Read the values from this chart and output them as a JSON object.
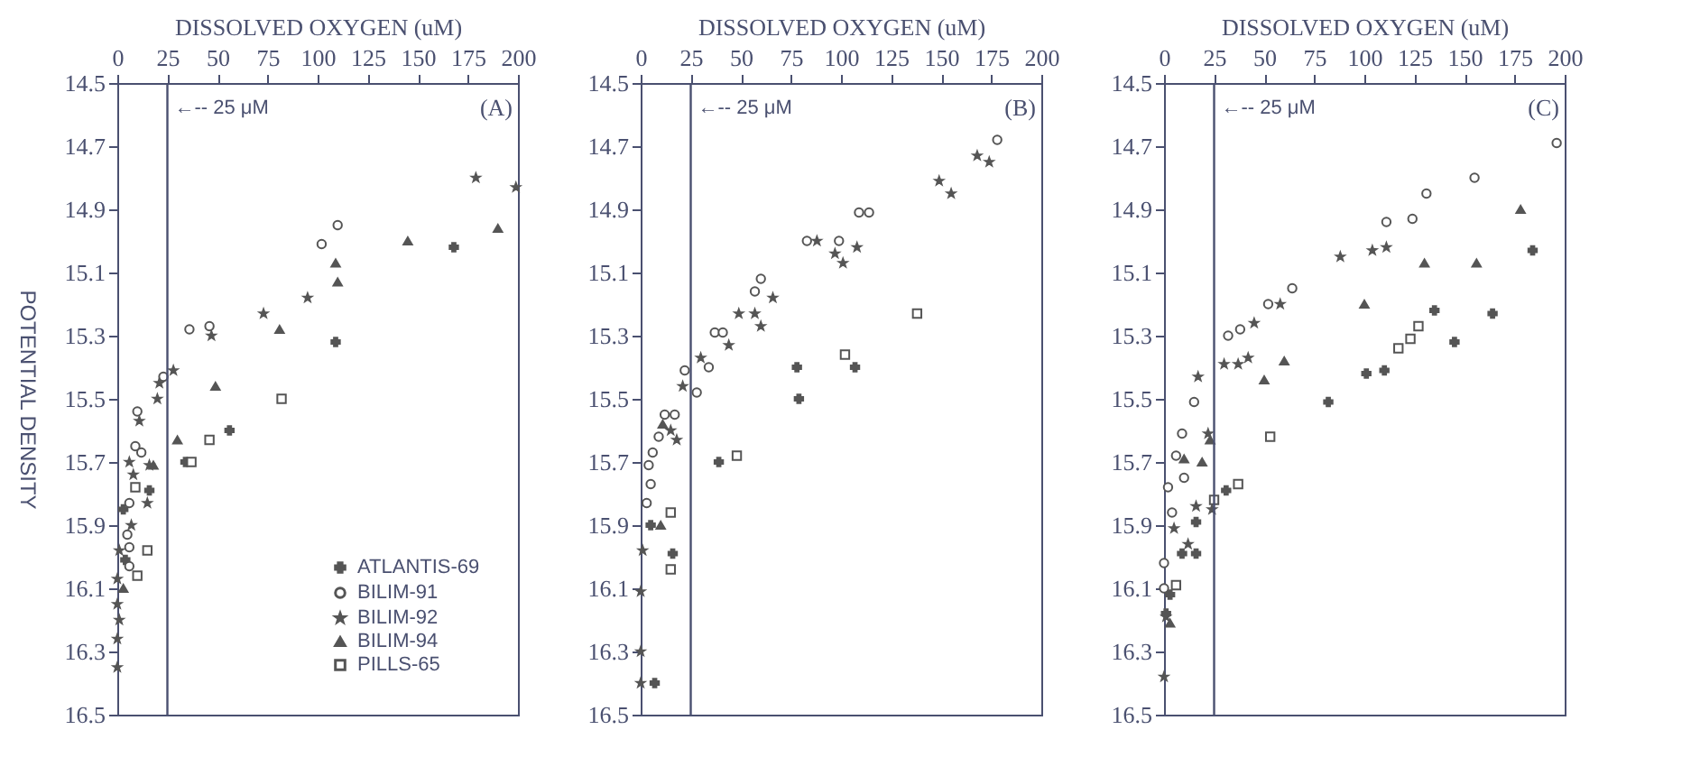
{
  "chart_data": [
    {
      "type": "scatter",
      "xlabel": "DISSOLVED OXYGEN (uM)",
      "ylabel": "POTENTIAL DENSITY",
      "xlim": [
        0,
        200
      ],
      "xticks": [
        0,
        25,
        50,
        75,
        100,
        125,
        150,
        175,
        200
      ],
      "ylim": [
        16.5,
        14.5
      ],
      "yticks": [
        14.5,
        14.7,
        14.9,
        15.1,
        15.3,
        15.5,
        15.7,
        15.9,
        16.1,
        16.3,
        16.5
      ],
      "legend": "bottom right",
      "annotations": [
        {
          "text": "(A)"
        }
      ],
      "ref_lines": [
        {
          "axis": "x",
          "value": 25,
          "label": "←-- 25 μM"
        }
      ],
      "series": [
        {
          "name": "ATLANTIS-69",
          "color": "#555555",
          "marker": "cross",
          "x": [
            168,
            109,
            56,
            34,
            16,
            3,
            4
          ],
          "values": [
            15.02,
            15.32,
            15.6,
            15.7,
            15.79,
            15.85,
            16.01
          ]
        },
        {
          "name": "BILIM-91",
          "color": "#555555",
          "marker": "circle",
          "x": [
            110,
            102,
            36,
            46,
            23,
            10,
            9,
            12,
            6,
            5,
            6,
            6
          ],
          "values": [
            14.95,
            15.01,
            15.28,
            15.27,
            15.43,
            15.54,
            15.65,
            15.67,
            15.83,
            15.93,
            15.97,
            16.03
          ]
        },
        {
          "name": "BILIM-92",
          "color": "#555555",
          "marker": "star",
          "x": [
            179,
            199,
            95,
            73,
            47,
            28,
            21,
            20,
            11,
            16,
            6,
            8,
            15,
            7,
            1,
            0,
            0,
            1,
            0,
            0
          ],
          "values": [
            14.8,
            14.83,
            15.18,
            15.23,
            15.3,
            15.41,
            15.45,
            15.5,
            15.57,
            15.71,
            15.7,
            15.74,
            15.83,
            15.9,
            15.98,
            16.07,
            16.15,
            16.2,
            16.26,
            16.35
          ]
        },
        {
          "name": "BILIM-94",
          "color": "#555555",
          "marker": "triangle",
          "x": [
            190,
            145,
            109,
            110,
            81,
            49,
            30,
            18,
            3
          ],
          "values": [
            14.96,
            15.0,
            15.07,
            15.13,
            15.28,
            15.46,
            15.63,
            15.71,
            16.1
          ]
        },
        {
          "name": "PILLS-65",
          "color": "#555555",
          "marker": "square",
          "x": [
            82,
            46,
            37,
            9,
            15,
            10
          ],
          "values": [
            15.5,
            15.63,
            15.7,
            15.78,
            15.98,
            16.06
          ]
        }
      ]
    },
    {
      "type": "scatter",
      "xlabel": "DISSOLVED OXYGEN (uM)",
      "xlim": [
        0,
        200
      ],
      "xticks": [
        0,
        25,
        50,
        75,
        100,
        125,
        150,
        175,
        200
      ],
      "ylim": [
        16.5,
        14.5
      ],
      "yticks": [
        14.5,
        14.7,
        14.9,
        15.1,
        15.3,
        15.5,
        15.7,
        15.9,
        16.1,
        16.3,
        16.5
      ],
      "annotations": [
        {
          "text": "(B)"
        }
      ],
      "ref_lines": [
        {
          "axis": "x",
          "value": 25,
          "label": "←-- 25 μM"
        }
      ],
      "series": [
        {
          "color": "#555555",
          "marker": "cross",
          "x": [
            78,
            107,
            79,
            39,
            5,
            16,
            7
          ],
          "values": [
            15.4,
            15.4,
            15.5,
            15.7,
            15.9,
            15.99,
            16.4
          ]
        },
        {
          "color": "#555555",
          "marker": "circle",
          "x": [
            178,
            109,
            114,
            83,
            99,
            60,
            57,
            37,
            41,
            34,
            22,
            28,
            12,
            17,
            9,
            6,
            4,
            5,
            3
          ],
          "values": [
            14.68,
            14.91,
            14.91,
            15.0,
            15.0,
            15.12,
            15.16,
            15.29,
            15.29,
            15.4,
            15.41,
            15.48,
            15.55,
            15.55,
            15.62,
            15.67,
            15.71,
            15.77,
            15.83
          ]
        },
        {
          "color": "#555555",
          "marker": "star",
          "x": [
            168,
            174,
            149,
            155,
            88,
            97,
            101,
            108,
            66,
            49,
            57,
            60,
            44,
            30,
            21,
            15,
            18,
            1,
            0,
            0,
            0
          ],
          "values": [
            14.73,
            14.75,
            14.81,
            14.85,
            15.0,
            15.04,
            15.07,
            15.02,
            15.18,
            15.23,
            15.23,
            15.27,
            15.33,
            15.37,
            15.46,
            15.6,
            15.63,
            15.98,
            16.11,
            16.3,
            16.4
          ]
        },
        {
          "color": "#555555",
          "marker": "triangle",
          "x": [
            11,
            10
          ],
          "values": [
            15.58,
            15.9
          ]
        },
        {
          "color": "#555555",
          "marker": "square",
          "x": [
            138,
            102,
            48,
            15,
            15
          ],
          "values": [
            15.23,
            15.36,
            15.68,
            15.86,
            16.04
          ]
        }
      ]
    },
    {
      "type": "scatter",
      "xlabel": "DISSOLVED OXYGEN (uM)",
      "xlim": [
        0,
        200
      ],
      "xticks": [
        0,
        25,
        50,
        75,
        100,
        125,
        150,
        175,
        200
      ],
      "ylim": [
        16.5,
        14.5
      ],
      "yticks": [
        14.5,
        14.7,
        14.9,
        15.1,
        15.3,
        15.5,
        15.7,
        15.9,
        16.1,
        16.3,
        16.5
      ],
      "annotations": [
        {
          "text": "(C)"
        }
      ],
      "ref_lines": [
        {
          "axis": "x",
          "value": 25,
          "label": "←-- 25 μM"
        }
      ],
      "series": [
        {
          "color": "#555555",
          "marker": "cross",
          "x": [
            184,
            164,
            135,
            145,
            110,
            101,
            82,
            31,
            16,
            9,
            16,
            3,
            1
          ],
          "values": [
            15.03,
            15.23,
            15.22,
            15.32,
            15.41,
            15.42,
            15.51,
            15.79,
            15.89,
            15.99,
            15.99,
            16.12,
            16.18
          ]
        },
        {
          "color": "#555555",
          "marker": "circle",
          "x": [
            196,
            155,
            131,
            124,
            111,
            64,
            52,
            38,
            32,
            15,
            9,
            6,
            10,
            2,
            4,
            0,
            0
          ],
          "values": [
            14.69,
            14.8,
            14.85,
            14.93,
            14.94,
            15.15,
            15.2,
            15.28,
            15.3,
            15.51,
            15.61,
            15.68,
            15.75,
            15.78,
            15.86,
            16.02,
            16.1
          ]
        },
        {
          "color": "#555555",
          "marker": "star",
          "x": [
            111,
            104,
            88,
            58,
            45,
            42,
            37,
            30,
            17,
            22,
            24,
            12,
            16,
            5,
            1,
            0
          ],
          "values": [
            15.02,
            15.03,
            15.05,
            15.2,
            15.26,
            15.37,
            15.39,
            15.39,
            15.43,
            15.61,
            15.85,
            15.96,
            15.84,
            15.91,
            16.19,
            16.38
          ]
        },
        {
          "color": "#555555",
          "marker": "triangle",
          "x": [
            178,
            130,
            156,
            100,
            60,
            50,
            23,
            19,
            10,
            3
          ],
          "values": [
            14.9,
            15.07,
            15.07,
            15.2,
            15.38,
            15.44,
            15.63,
            15.7,
            15.69,
            16.21
          ]
        },
        {
          "color": "#555555",
          "marker": "square",
          "x": [
            127,
            123,
            117,
            53,
            37,
            25,
            6
          ],
          "values": [
            15.27,
            15.31,
            15.34,
            15.62,
            15.77,
            15.82,
            16.09
          ]
        }
      ]
    }
  ]
}
